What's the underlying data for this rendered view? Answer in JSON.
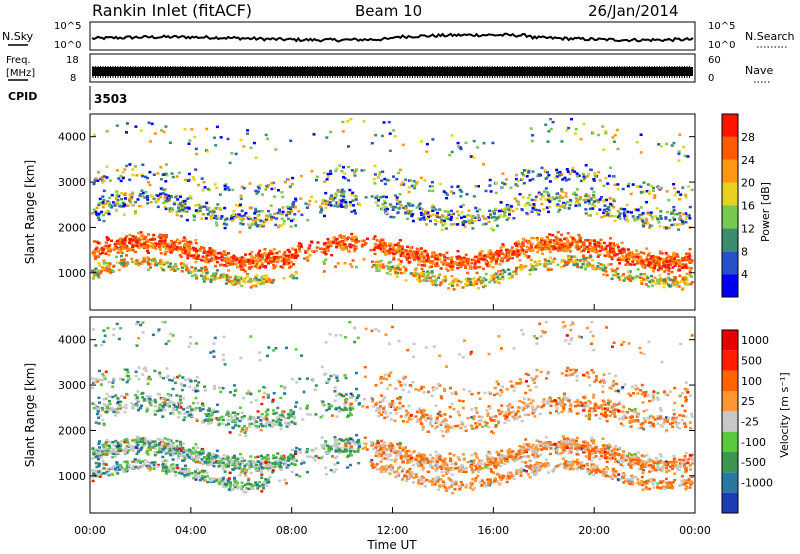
{
  "header": {
    "title": "Rankin Inlet (fitACF)",
    "beam": "Beam 10",
    "date": "26/Jan/2014"
  },
  "noise_panel": {
    "left_label": "N.Sky",
    "right_label": "N.Search",
    "tick_top": "10^5",
    "tick_bottom": "10^0"
  },
  "freq_panel": {
    "left_label_1": "Freq.",
    "left_label_2": "[MHz]",
    "right_label": "Nave",
    "left_ticks": [
      "18",
      "8"
    ],
    "right_ticks": [
      "60",
      "0"
    ]
  },
  "cpid": {
    "label": "CPID",
    "value": "3503"
  },
  "chart_data": [
    {
      "type": "heatmap",
      "name": "power",
      "ylabel": "Slant Range [km]",
      "ylim": [
        180,
        4500
      ],
      "yticks": [
        "1000",
        "2000",
        "3000",
        "4000"
      ],
      "colorbar_label": "Power [dB]",
      "colorbar_ticks": [
        "4",
        "8",
        "12",
        "16",
        "20",
        "24",
        "28"
      ],
      "colorbar_colors": [
        "#0000ee",
        "#2850c8",
        "#3c8c6e",
        "#78c850",
        "#e6d21e",
        "#ff9614",
        "#ff5a00",
        "#ff1400"
      ]
    },
    {
      "type": "heatmap",
      "name": "velocity",
      "ylabel": "Slant Range [km]",
      "ylim": [
        180,
        4500
      ],
      "yticks": [
        "1000",
        "2000",
        "3000",
        "4000"
      ],
      "colorbar_label": "Velocity [m s⁻¹]",
      "colorbar_ticks": [
        "1000",
        "500",
        "100",
        "25",
        "-25",
        "-100",
        "-500",
        "-1000"
      ],
      "colorbar_colors": [
        "#1e3cb4",
        "#2878a0",
        "#3c9650",
        "#5ac83c",
        "#c8c8c8",
        "#ff9632",
        "#ff6400",
        "#ff1e00",
        "#e60000"
      ]
    }
  ],
  "time_axis": {
    "label": "Time UT",
    "ticks": [
      "00:00",
      "04:00",
      "08:00",
      "12:00",
      "16:00",
      "20:00",
      "00:00"
    ]
  }
}
